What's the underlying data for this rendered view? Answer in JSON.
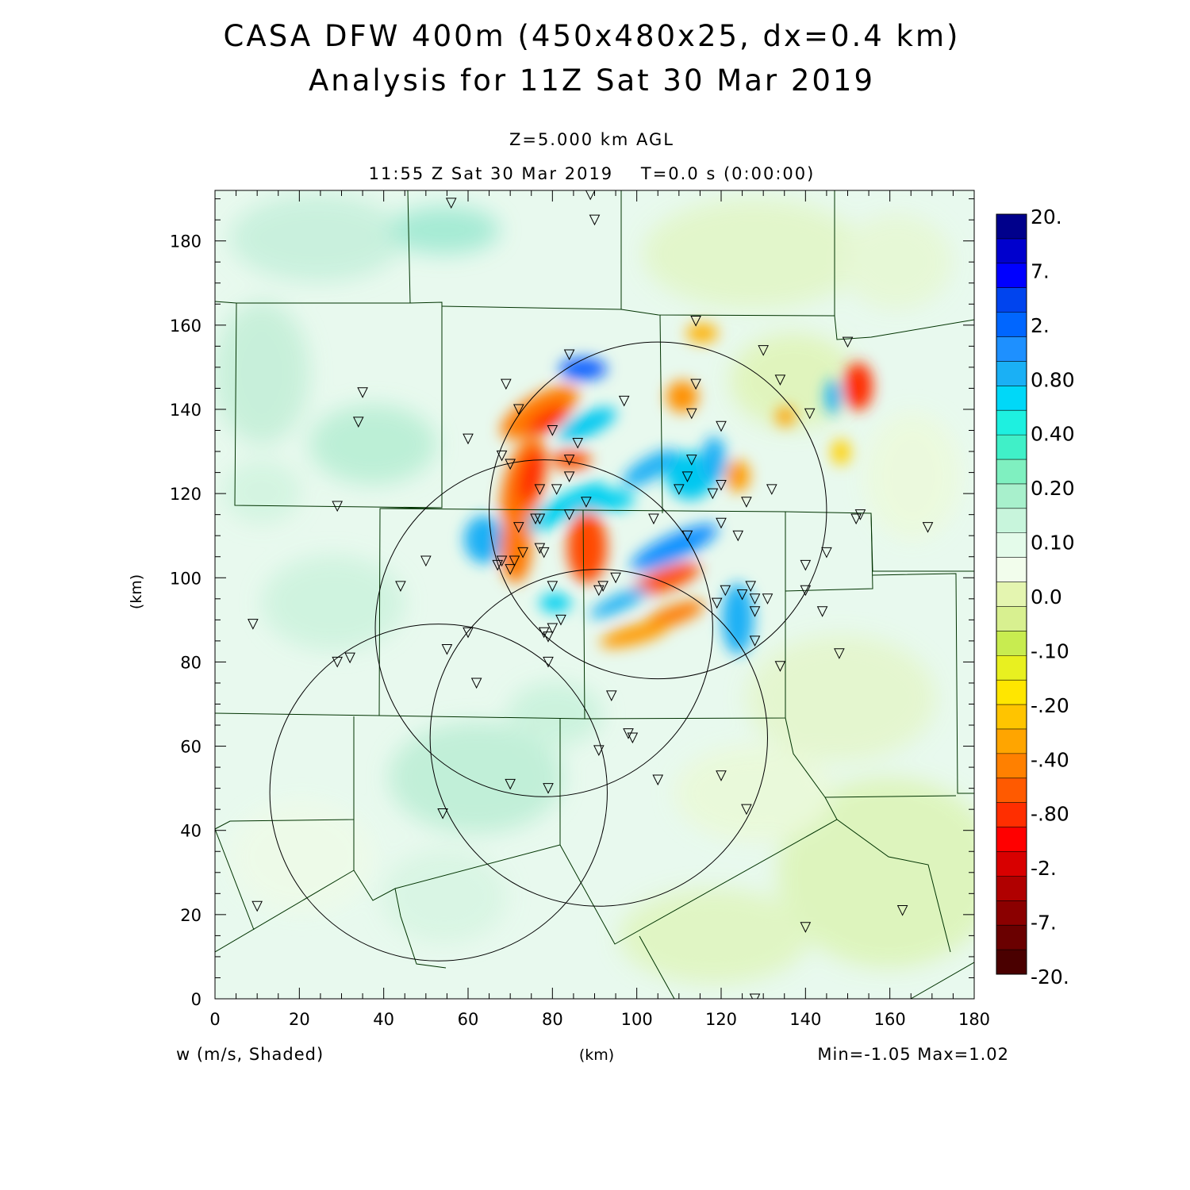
{
  "title": {
    "line1": "CASA DFW 400m (450x480x25, dx=0.4 km)",
    "line2": "Analysis for 11Z Sat 30 Mar 2019"
  },
  "subtitle": {
    "level": "Z=5.000 km AGL",
    "time": "11:55 Z Sat 30 Mar 2019    T=0.0 s (0:00:00)"
  },
  "footer": {
    "variable": "w (m/s, Shaded)",
    "xunit": "(km)",
    "minmax": "Min=-1.05 Max=1.02"
  },
  "axes": {
    "ylabel": "(km)",
    "x_ticks": [
      "0",
      "20",
      "40",
      "60",
      "80",
      "100",
      "120",
      "140",
      "160",
      "180"
    ],
    "y_ticks": [
      "0",
      "20",
      "40",
      "60",
      "80",
      "100",
      "120",
      "140",
      "160",
      "180"
    ],
    "xlim": [
      0,
      180
    ],
    "ylim": [
      0,
      192
    ]
  },
  "colorbar": {
    "labels": [
      "20.",
      "7.",
      "2.",
      "0.80",
      "0.40",
      "0.20",
      "0.10",
      "0.0",
      "-.10",
      "-.20",
      "-.40",
      "-.80",
      "-2.",
      "-7.",
      "-20."
    ],
    "colors": [
      "#00008b",
      "#0000cd",
      "#0000ff",
      "#0044ee",
      "#0066ff",
      "#1e90ff",
      "#1ab0f5",
      "#00d8f8",
      "#1ef0e0",
      "#40f0c8",
      "#7ff0c0",
      "#a8f0cc",
      "#c8f5dc",
      "#e4fbea",
      "#f2fdec",
      "#e4f5b0",
      "#d8f090",
      "#c8ec50",
      "#e8f020",
      "#ffe600",
      "#ffc400",
      "#ffa500",
      "#ff8000",
      "#ff5a00",
      "#ff2e00",
      "#ff0000",
      "#d80000",
      "#b00000",
      "#8b0000",
      "#6a0000",
      "#4a0000"
    ]
  },
  "domain_features": {
    "radar_rings_km": [
      {
        "cx": 105,
        "cy": 116,
        "r": 40
      },
      {
        "cx": 78,
        "cy": 88,
        "r": 40
      },
      {
        "cx": 91,
        "cy": 62,
        "r": 40
      },
      {
        "cx": 53,
        "cy": 49,
        "r": 40
      }
    ],
    "max_w": 1.02,
    "min_w": -1.05
  },
  "stations_km": [
    [
      56,
      189
    ],
    [
      89,
      191
    ],
    [
      90,
      185
    ],
    [
      35,
      144
    ],
    [
      34,
      137
    ],
    [
      69,
      146
    ],
    [
      72,
      140
    ],
    [
      84,
      153
    ],
    [
      60,
      133
    ],
    [
      68,
      129
    ],
    [
      70,
      127
    ],
    [
      80,
      135
    ],
    [
      86,
      132
    ],
    [
      97,
      142
    ],
    [
      84,
      128
    ],
    [
      84,
      124
    ],
    [
      88,
      118
    ],
    [
      77,
      121
    ],
    [
      81,
      121
    ],
    [
      76,
      114
    ],
    [
      77,
      114
    ],
    [
      72,
      112
    ],
    [
      84,
      115
    ],
    [
      104,
      114
    ],
    [
      112,
      110
    ],
    [
      110,
      121
    ],
    [
      113,
      128
    ],
    [
      112,
      124
    ],
    [
      114,
      146
    ],
    [
      113,
      139
    ],
    [
      120,
      136
    ],
    [
      118,
      120
    ],
    [
      120,
      122
    ],
    [
      120,
      113
    ],
    [
      126,
      118
    ],
    [
      132,
      121
    ],
    [
      124,
      110
    ],
    [
      130,
      154
    ],
    [
      134,
      147
    ],
    [
      141,
      139
    ],
    [
      150,
      156
    ],
    [
      153,
      115
    ],
    [
      152,
      114
    ],
    [
      145,
      106
    ],
    [
      140,
      103
    ],
    [
      140,
      97
    ],
    [
      144,
      92
    ],
    [
      148,
      82
    ],
    [
      169,
      112
    ],
    [
      114,
      161
    ],
    [
      29,
      117
    ],
    [
      50,
      104
    ],
    [
      44,
      98
    ],
    [
      67,
      103
    ],
    [
      68,
      104
    ],
    [
      70,
      102
    ],
    [
      71,
      104
    ],
    [
      73,
      106
    ],
    [
      78,
      106
    ],
    [
      77,
      107
    ],
    [
      92,
      98
    ],
    [
      91,
      97
    ],
    [
      95,
      100
    ],
    [
      80,
      98
    ],
    [
      119,
      94
    ],
    [
      121,
      97
    ],
    [
      125,
      96
    ],
    [
      128,
      95
    ],
    [
      127,
      98
    ],
    [
      128,
      92
    ],
    [
      131,
      95
    ],
    [
      128,
      85
    ],
    [
      134,
      79
    ],
    [
      9,
      89
    ],
    [
      29,
      80
    ],
    [
      32,
      81
    ],
    [
      55,
      83
    ],
    [
      60,
      87
    ],
    [
      79,
      86
    ],
    [
      80,
      88
    ],
    [
      82,
      90
    ],
    [
      78,
      87
    ],
    [
      79,
      80
    ],
    [
      62,
      75
    ],
    [
      94,
      72
    ],
    [
      98,
      63
    ],
    [
      99,
      62
    ],
    [
      91,
      59
    ],
    [
      70,
      51
    ],
    [
      79,
      50
    ],
    [
      54,
      44
    ],
    [
      105,
      52
    ],
    [
      120,
      53
    ],
    [
      126,
      45
    ],
    [
      10,
      22
    ],
    [
      140,
      17
    ],
    [
      163,
      21
    ],
    [
      128,
      0
    ]
  ],
  "stations_label": ""
}
